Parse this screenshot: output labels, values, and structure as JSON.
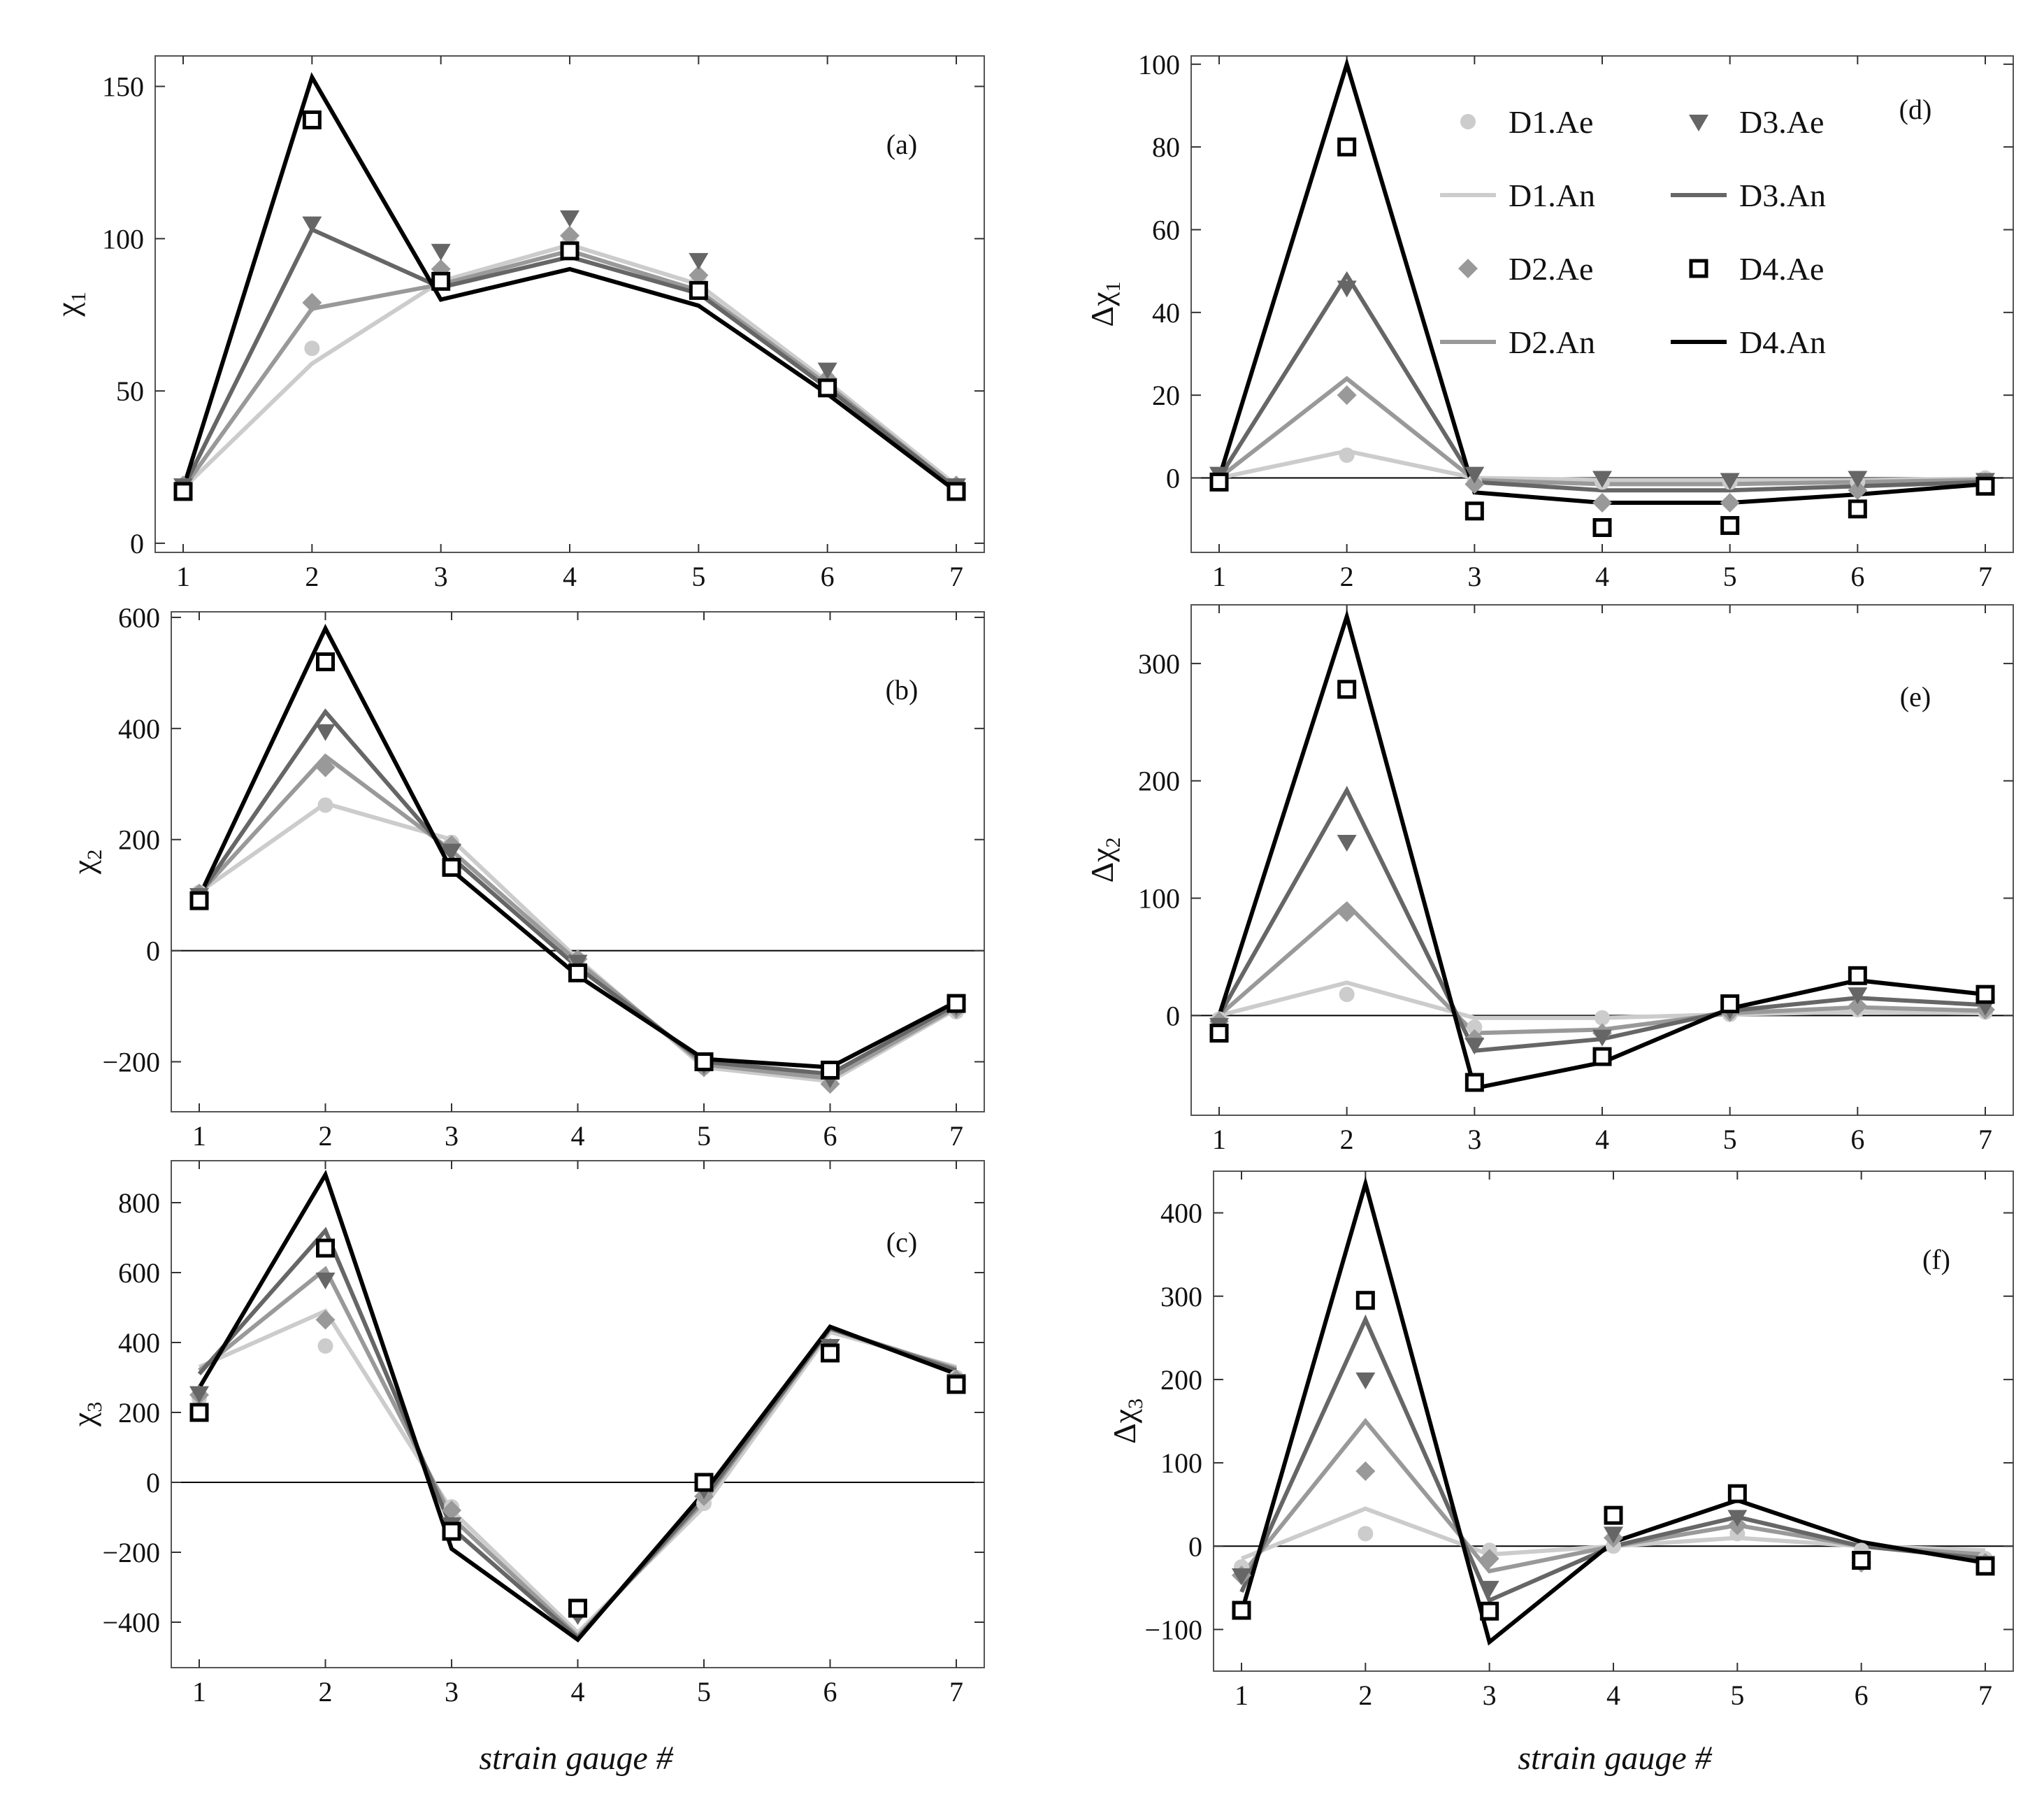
{
  "figure": {
    "xlabel": "strain gauge #"
  },
  "legend": [
    {
      "label": "D1.Ae",
      "series": "D1",
      "kind": "Ae",
      "marker": "circle"
    },
    {
      "label": "D3.Ae",
      "series": "D3",
      "kind": "Ae",
      "marker": "triangle"
    },
    {
      "label": "D1.An",
      "series": "D1",
      "kind": "An"
    },
    {
      "label": "D3.An",
      "series": "D3",
      "kind": "An"
    },
    {
      "label": "D2.Ae",
      "series": "D2",
      "kind": "Ae",
      "marker": "diamond"
    },
    {
      "label": "D4.Ae",
      "series": "D4",
      "kind": "Ae",
      "marker": "square"
    },
    {
      "label": "D2.An",
      "series": "D2",
      "kind": "An"
    },
    {
      "label": "D4.An",
      "series": "D4",
      "kind": "An"
    }
  ],
  "colors": {
    "D1": "#cccccc",
    "D2": "#999999",
    "D3": "#666666",
    "D4": "#000000"
  },
  "chart_data": [
    {
      "id": "a",
      "type": "line",
      "tag": "(a)",
      "ylabel_base": "χ",
      "ylabel_delta": "",
      "ylabel_sub": "1",
      "x": [
        1,
        2,
        3,
        4,
        5,
        6,
        7
      ],
      "ylim": [
        -3,
        160
      ],
      "yticks": [
        0,
        50,
        100,
        150
      ],
      "ytick_labels": [
        "0",
        "50",
        "100",
        "150"
      ],
      "zero_line": false,
      "series": [
        {
          "name": "D1",
          "an": [
            18,
            59,
            86,
            98,
            85,
            53,
            19
          ],
          "ae": [
            19,
            64,
            88,
            99,
            87,
            54,
            19
          ]
        },
        {
          "name": "D2",
          "an": [
            18,
            77,
            85,
            96,
            83,
            52,
            18
          ],
          "ae": [
            19,
            79,
            90,
            101,
            88,
            54,
            19
          ]
        },
        {
          "name": "D3",
          "an": [
            18,
            103,
            84,
            94,
            82,
            51,
            18
          ],
          "ae": [
            19,
            105,
            96,
            107,
            93,
            57,
            19
          ]
        },
        {
          "name": "D4",
          "an": [
            18,
            153,
            80,
            90,
            78,
            49,
            17
          ],
          "ae": [
            17,
            139,
            86,
            96,
            83,
            51,
            17
          ]
        }
      ]
    },
    {
      "id": "b",
      "type": "line",
      "tag": "(b)",
      "ylabel_base": "χ",
      "ylabel_delta": "",
      "ylabel_sub": "2",
      "x": [
        1,
        2,
        3,
        4,
        5,
        6,
        7
      ],
      "ylim": [
        -290,
        610
      ],
      "yticks": [
        -200,
        0,
        200,
        400,
        600
      ],
      "ytick_labels": [
        "−200",
        "0",
        "200",
        "400",
        "600"
      ],
      "zero_line": true,
      "series": [
        {
          "name": "D1",
          "an": [
            105,
            265,
            200,
            -15,
            -210,
            -235,
            -105
          ],
          "ae": [
            105,
            262,
            195,
            -15,
            -210,
            -235,
            -110
          ]
        },
        {
          "name": "D2",
          "an": [
            103,
            350,
            180,
            -20,
            -205,
            -230,
            -102
          ],
          "ae": [
            103,
            330,
            190,
            -15,
            -210,
            -240,
            -105
          ]
        },
        {
          "name": "D3",
          "an": [
            100,
            430,
            168,
            -30,
            -200,
            -222,
            -97
          ],
          "ae": [
            100,
            395,
            180,
            -20,
            -205,
            -230,
            -100
          ]
        },
        {
          "name": "D4",
          "an": [
            97,
            580,
            145,
            -45,
            -195,
            -210,
            -92
          ],
          "ae": [
            90,
            520,
            150,
            -40,
            -200,
            -215,
            -95
          ]
        }
      ]
    },
    {
      "id": "c",
      "type": "line",
      "tag": "(c)",
      "ylabel_base": "χ",
      "ylabel_delta": "",
      "ylabel_sub": "3",
      "x": [
        1,
        2,
        3,
        4,
        5,
        6,
        7
      ],
      "ylim": [
        -530,
        920
      ],
      "yticks": [
        -400,
        -200,
        0,
        200,
        400,
        600,
        800
      ],
      "ytick_labels": [
        "−400",
        "−200",
        "0",
        "200",
        "400",
        "600",
        "800"
      ],
      "zero_line": true,
      "series": [
        {
          "name": "D1",
          "an": [
            330,
            490,
            -80,
            -430,
            -70,
            430,
            330
          ],
          "ae": [
            240,
            390,
            -70,
            -370,
            -60,
            380,
            300
          ]
        },
        {
          "name": "D2",
          "an": [
            320,
            610,
            -100,
            -440,
            -55,
            440,
            325
          ],
          "ae": [
            250,
            465,
            -80,
            -375,
            -40,
            385,
            295
          ]
        },
        {
          "name": "D3",
          "an": [
            310,
            720,
            -130,
            -445,
            -45,
            440,
            320
          ],
          "ae": [
            255,
            580,
            -120,
            -380,
            -20,
            390,
            290
          ]
        },
        {
          "name": "D4",
          "an": [
            270,
            880,
            -190,
            -450,
            -30,
            445,
            310
          ],
          "ae": [
            200,
            670,
            -140,
            -360,
            0,
            370,
            280
          ]
        }
      ]
    },
    {
      "id": "d",
      "type": "line",
      "tag": "(d)",
      "ylabel_base": "χ",
      "ylabel_delta": "Δ",
      "ylabel_sub": "1",
      "x": [
        1,
        2,
        3,
        4,
        5,
        6,
        7
      ],
      "ylim": [
        -18,
        102
      ],
      "yticks": [
        0,
        20,
        40,
        60,
        80,
        100
      ],
      "ytick_labels": [
        "0",
        "20",
        "40",
        "60",
        "80",
        "100"
      ],
      "zero_line": true,
      "series": [
        {
          "name": "D1",
          "an": [
            0,
            6.5,
            0,
            -0.5,
            -0.5,
            -0.5,
            -0.2
          ],
          "ae": [
            0,
            5.5,
            -1,
            -1,
            -1,
            -1,
            0
          ]
        },
        {
          "name": "D2",
          "an": [
            0,
            24,
            -0.5,
            -1.5,
            -1.5,
            -1,
            -0.5
          ],
          "ae": [
            0,
            20,
            -1.5,
            -6,
            -6,
            -3,
            -1
          ]
        },
        {
          "name": "D3",
          "an": [
            0,
            49,
            -1,
            -3,
            -3,
            -2,
            -1
          ],
          "ae": [
            1,
            46,
            1,
            0,
            -0.5,
            0,
            -0.5
          ]
        },
        {
          "name": "D4",
          "an": [
            0,
            100,
            -3.5,
            -6,
            -6,
            -4,
            -1.5
          ],
          "ae": [
            -1,
            80,
            -8,
            -12,
            -11.5,
            -7.5,
            -2
          ]
        }
      ]
    },
    {
      "id": "e",
      "type": "line",
      "tag": "(e)",
      "ylabel_base": "χ",
      "ylabel_delta": "Δ",
      "ylabel_sub": "2",
      "x": [
        1,
        2,
        3,
        4,
        5,
        6,
        7
      ],
      "ylim": [
        -85,
        350
      ],
      "yticks": [
        0,
        100,
        200,
        300
      ],
      "ytick_labels": [
        "0",
        "100",
        "200",
        "300"
      ],
      "zero_line": true,
      "series": [
        {
          "name": "D1",
          "an": [
            0,
            28,
            -2,
            -2,
            1,
            3,
            2
          ],
          "ae": [
            -3,
            18,
            -10,
            -2,
            1,
            5,
            3
          ]
        },
        {
          "name": "D2",
          "an": [
            0,
            95,
            -15,
            -12,
            2,
            7,
            4
          ],
          "ae": [
            -5,
            88,
            -20,
            -15,
            3,
            8,
            5
          ]
        },
        {
          "name": "D3",
          "an": [
            0,
            192,
            -30,
            -20,
            4,
            15,
            9
          ],
          "ae": [
            -8,
            148,
            -25,
            -18,
            5,
            18,
            8
          ]
        },
        {
          "name": "D4",
          "an": [
            0,
            340,
            -62,
            -40,
            6,
            30,
            18
          ],
          "ae": [
            -15,
            278,
            -57,
            -35,
            10,
            34,
            18
          ]
        }
      ]
    },
    {
      "id": "f",
      "type": "line",
      "tag": "(f)",
      "ylabel_base": "χ",
      "ylabel_delta": "Δ",
      "ylabel_sub": "3",
      "x": [
        1,
        2,
        3,
        4,
        5,
        6,
        7
      ],
      "ylim": [
        -150,
        450
      ],
      "yticks": [
        -100,
        0,
        100,
        200,
        300,
        400
      ],
      "ytick_labels": [
        "−100",
        "0",
        "100",
        "200",
        "300",
        "400"
      ],
      "zero_line": true,
      "series": [
        {
          "name": "D1",
          "an": [
            -15,
            45,
            -10,
            0,
            10,
            0,
            -5
          ],
          "ae": [
            -25,
            15,
            -5,
            0,
            15,
            -5,
            -15
          ]
        },
        {
          "name": "D2",
          "an": [
            -35,
            150,
            -30,
            0,
            25,
            0,
            -10
          ],
          "ae": [
            -35,
            90,
            -15,
            10,
            25,
            -20,
            -20
          ]
        },
        {
          "name": "D3",
          "an": [
            -55,
            272,
            -65,
            0,
            35,
            0,
            -15
          ],
          "ae": [
            -35,
            200,
            -50,
            15,
            35,
            -15,
            -20
          ]
        },
        {
          "name": "D4",
          "an": [
            -80,
            435,
            -115,
            5,
            55,
            5,
            -20
          ],
          "ae": [
            -77,
            295,
            -78,
            37,
            63,
            -17,
            -24
          ]
        }
      ]
    }
  ]
}
